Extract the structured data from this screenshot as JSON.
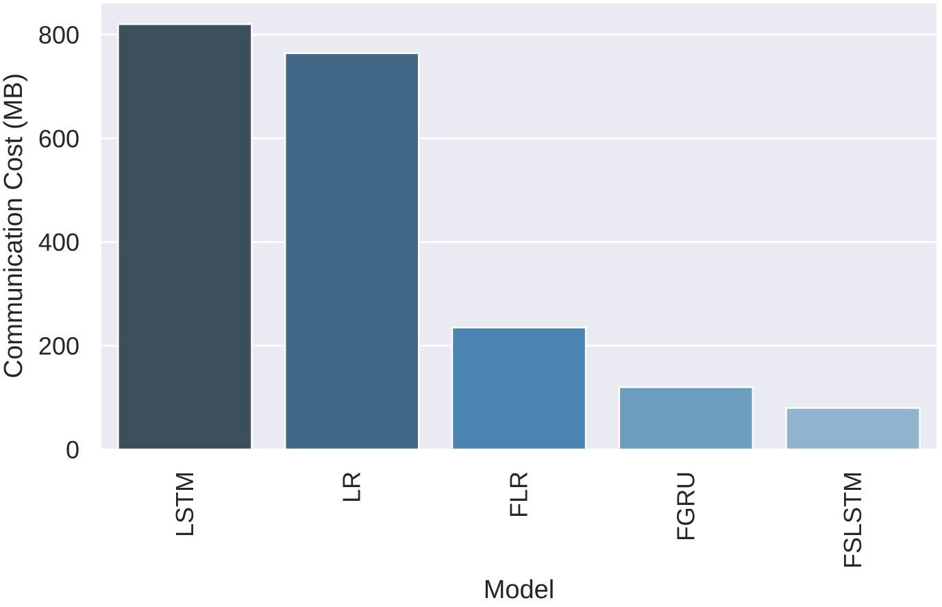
{
  "chart_data": {
    "type": "bar",
    "title": "",
    "xlabel": "Model",
    "ylabel": "Communication Cost (MB)",
    "categories": [
      "LSTM",
      "LR",
      "FLR",
      "FGRU",
      "FSLSTM"
    ],
    "values": [
      820,
      764,
      235,
      120,
      80
    ],
    "ylim": [
      0,
      860
    ],
    "yticks": [
      0,
      200,
      400,
      600,
      800
    ],
    "grid": true,
    "legend": "none",
    "colors": [
      "#3b4f5c",
      "#426887",
      "#4a85b2",
      "#6b9ebf",
      "#90b4ce"
    ],
    "background_color": "#eaeaf2",
    "grid_color": "#ffffff"
  }
}
